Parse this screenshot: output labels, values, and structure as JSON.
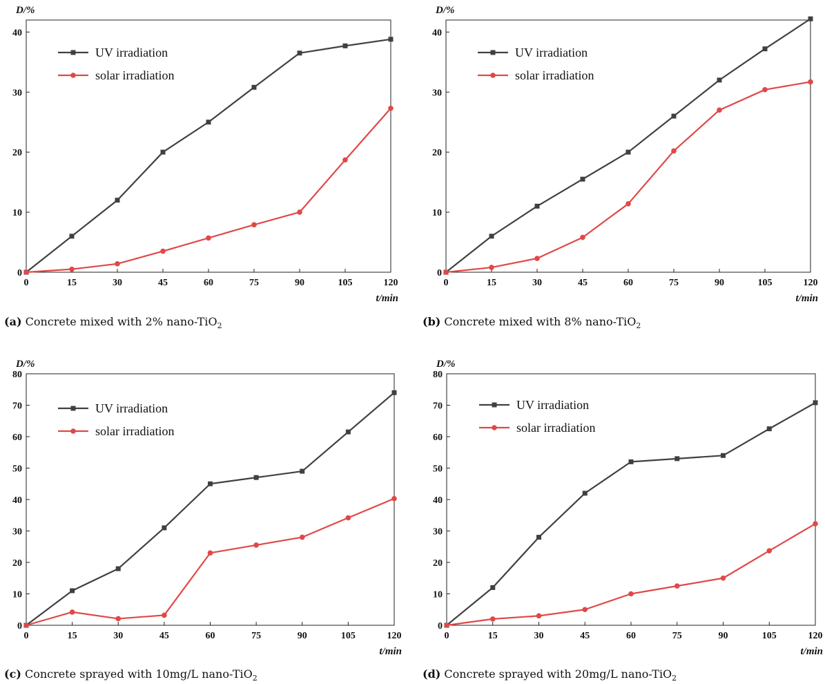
{
  "chart_data": [
    {
      "type": "line",
      "id": "a",
      "caption": {
        "letter": "(a)",
        "text": "Concrete mixed with 2% nano-TiO",
        "sub": "2"
      },
      "ylabel": "D/%",
      "xlabel": "t/min",
      "xlim": [
        0,
        120
      ],
      "ylim": [
        0,
        42
      ],
      "xticks": [
        0,
        15,
        30,
        45,
        60,
        75,
        90,
        105,
        120
      ],
      "yticks": [
        0,
        10,
        20,
        30,
        40
      ],
      "legend_position": "top-left",
      "series": [
        {
          "name": "UV irradiation",
          "color": "#404040",
          "marker": "square",
          "x": [
            0,
            15,
            30,
            45,
            60,
            75,
            90,
            105,
            120
          ],
          "values": [
            0,
            6,
            12,
            20,
            25,
            30.8,
            36.5,
            37.7,
            38.8
          ]
        },
        {
          "name": "solar irradiation",
          "color": "#e04848",
          "marker": "circle",
          "x": [
            0,
            15,
            30,
            45,
            60,
            75,
            90,
            105,
            120
          ],
          "values": [
            0,
            0.5,
            1.4,
            3.5,
            5.7,
            7.9,
            10,
            18.7,
            27.3
          ]
        }
      ]
    },
    {
      "type": "line",
      "id": "b",
      "caption": {
        "letter": "(b)",
        "text": "Concrete mixed with 8% nano-TiO",
        "sub": "2"
      },
      "ylabel": "D/%",
      "xlabel": "t/min",
      "xlim": [
        0,
        120
      ],
      "ylim": [
        0,
        42
      ],
      "xticks": [
        0,
        15,
        30,
        45,
        60,
        75,
        90,
        105,
        120
      ],
      "yticks": [
        0,
        10,
        20,
        30,
        40
      ],
      "legend_position": "top-left",
      "series": [
        {
          "name": "UV irradiation",
          "color": "#404040",
          "marker": "square",
          "x": [
            0,
            15,
            30,
            45,
            60,
            75,
            90,
            105,
            120
          ],
          "values": [
            0,
            6,
            11,
            15.5,
            20,
            26,
            32,
            37.2,
            42.2
          ]
        },
        {
          "name": "solar irradiation",
          "color": "#e04848",
          "marker": "circle",
          "x": [
            0,
            15,
            30,
            45,
            60,
            75,
            90,
            105,
            120
          ],
          "values": [
            0,
            0.8,
            2.3,
            5.8,
            11.4,
            20.2,
            27,
            30.4,
            31.7
          ]
        }
      ]
    },
    {
      "type": "line",
      "id": "c",
      "caption": {
        "letter": "(c)",
        "text": "Concrete sprayed with 10mg/L nano-TiO",
        "sub": "2"
      },
      "ylabel": "D/%",
      "xlabel": "t/min",
      "xlim": [
        0,
        120
      ],
      "ylim": [
        0,
        80
      ],
      "xticks": [
        0,
        15,
        30,
        45,
        60,
        75,
        90,
        105,
        120
      ],
      "yticks": [
        0,
        10,
        20,
        30,
        40,
        50,
        60,
        70,
        80
      ],
      "legend_position": "top-left",
      "series": [
        {
          "name": "UV irradiation",
          "color": "#404040",
          "marker": "square",
          "x": [
            0,
            15,
            30,
            45,
            60,
            75,
            90,
            105,
            120
          ],
          "values": [
            0,
            11,
            18,
            31,
            45,
            47,
            49,
            61.5,
            74
          ]
        },
        {
          "name": "solar irradiation",
          "color": "#e04848",
          "marker": "circle",
          "x": [
            0,
            15,
            30,
            45,
            60,
            75,
            90,
            105,
            120
          ],
          "values": [
            0,
            4.2,
            2.1,
            3.2,
            23,
            25.5,
            28,
            34.2,
            40.3
          ]
        }
      ]
    },
    {
      "type": "line",
      "id": "d",
      "caption": {
        "letter": "(d)",
        "text": "Concrete sprayed with 20mg/L nano-TiO",
        "sub": "2"
      },
      "ylabel": "D/%",
      "xlabel": "t/min",
      "xlim": [
        0,
        120
      ],
      "ylim": [
        0,
        80
      ],
      "xticks": [
        0,
        15,
        30,
        45,
        60,
        75,
        90,
        105,
        120
      ],
      "yticks": [
        0,
        10,
        20,
        30,
        40,
        50,
        60,
        70,
        80
      ],
      "legend_position": "top-left",
      "series": [
        {
          "name": "UV irradiation",
          "color": "#404040",
          "marker": "square",
          "x": [
            0,
            15,
            30,
            45,
            60,
            75,
            90,
            105,
            120
          ],
          "values": [
            0,
            12,
            28,
            42,
            52,
            53,
            54,
            62.5,
            70.8
          ]
        },
        {
          "name": "solar irradiation",
          "color": "#e04848",
          "marker": "circle",
          "x": [
            0,
            15,
            30,
            45,
            60,
            75,
            90,
            105,
            120
          ],
          "values": [
            0,
            2,
            3,
            5,
            10,
            12.5,
            15,
            23.7,
            32.3
          ]
        }
      ]
    }
  ]
}
